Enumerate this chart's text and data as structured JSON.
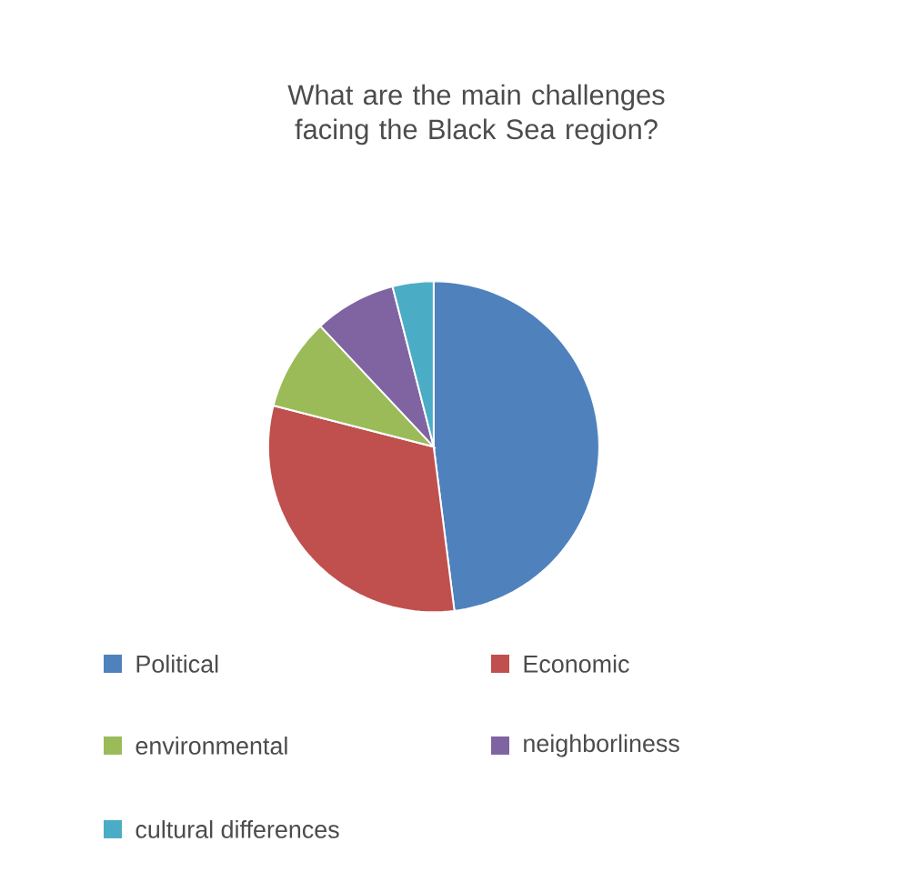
{
  "chart_data": {
    "type": "pie",
    "title": "What are the main challenges facing the Black Sea region?",
    "categories": [
      "Political",
      "Economic",
      "environmental",
      "neighborliness",
      "cultural differences"
    ],
    "values": [
      48,
      31,
      9,
      8,
      4
    ],
    "colors": [
      "#4f81bd",
      "#c0504d",
      "#9bbb59",
      "#8064a2",
      "#4bacc6"
    ],
    "legend": "bottom"
  }
}
